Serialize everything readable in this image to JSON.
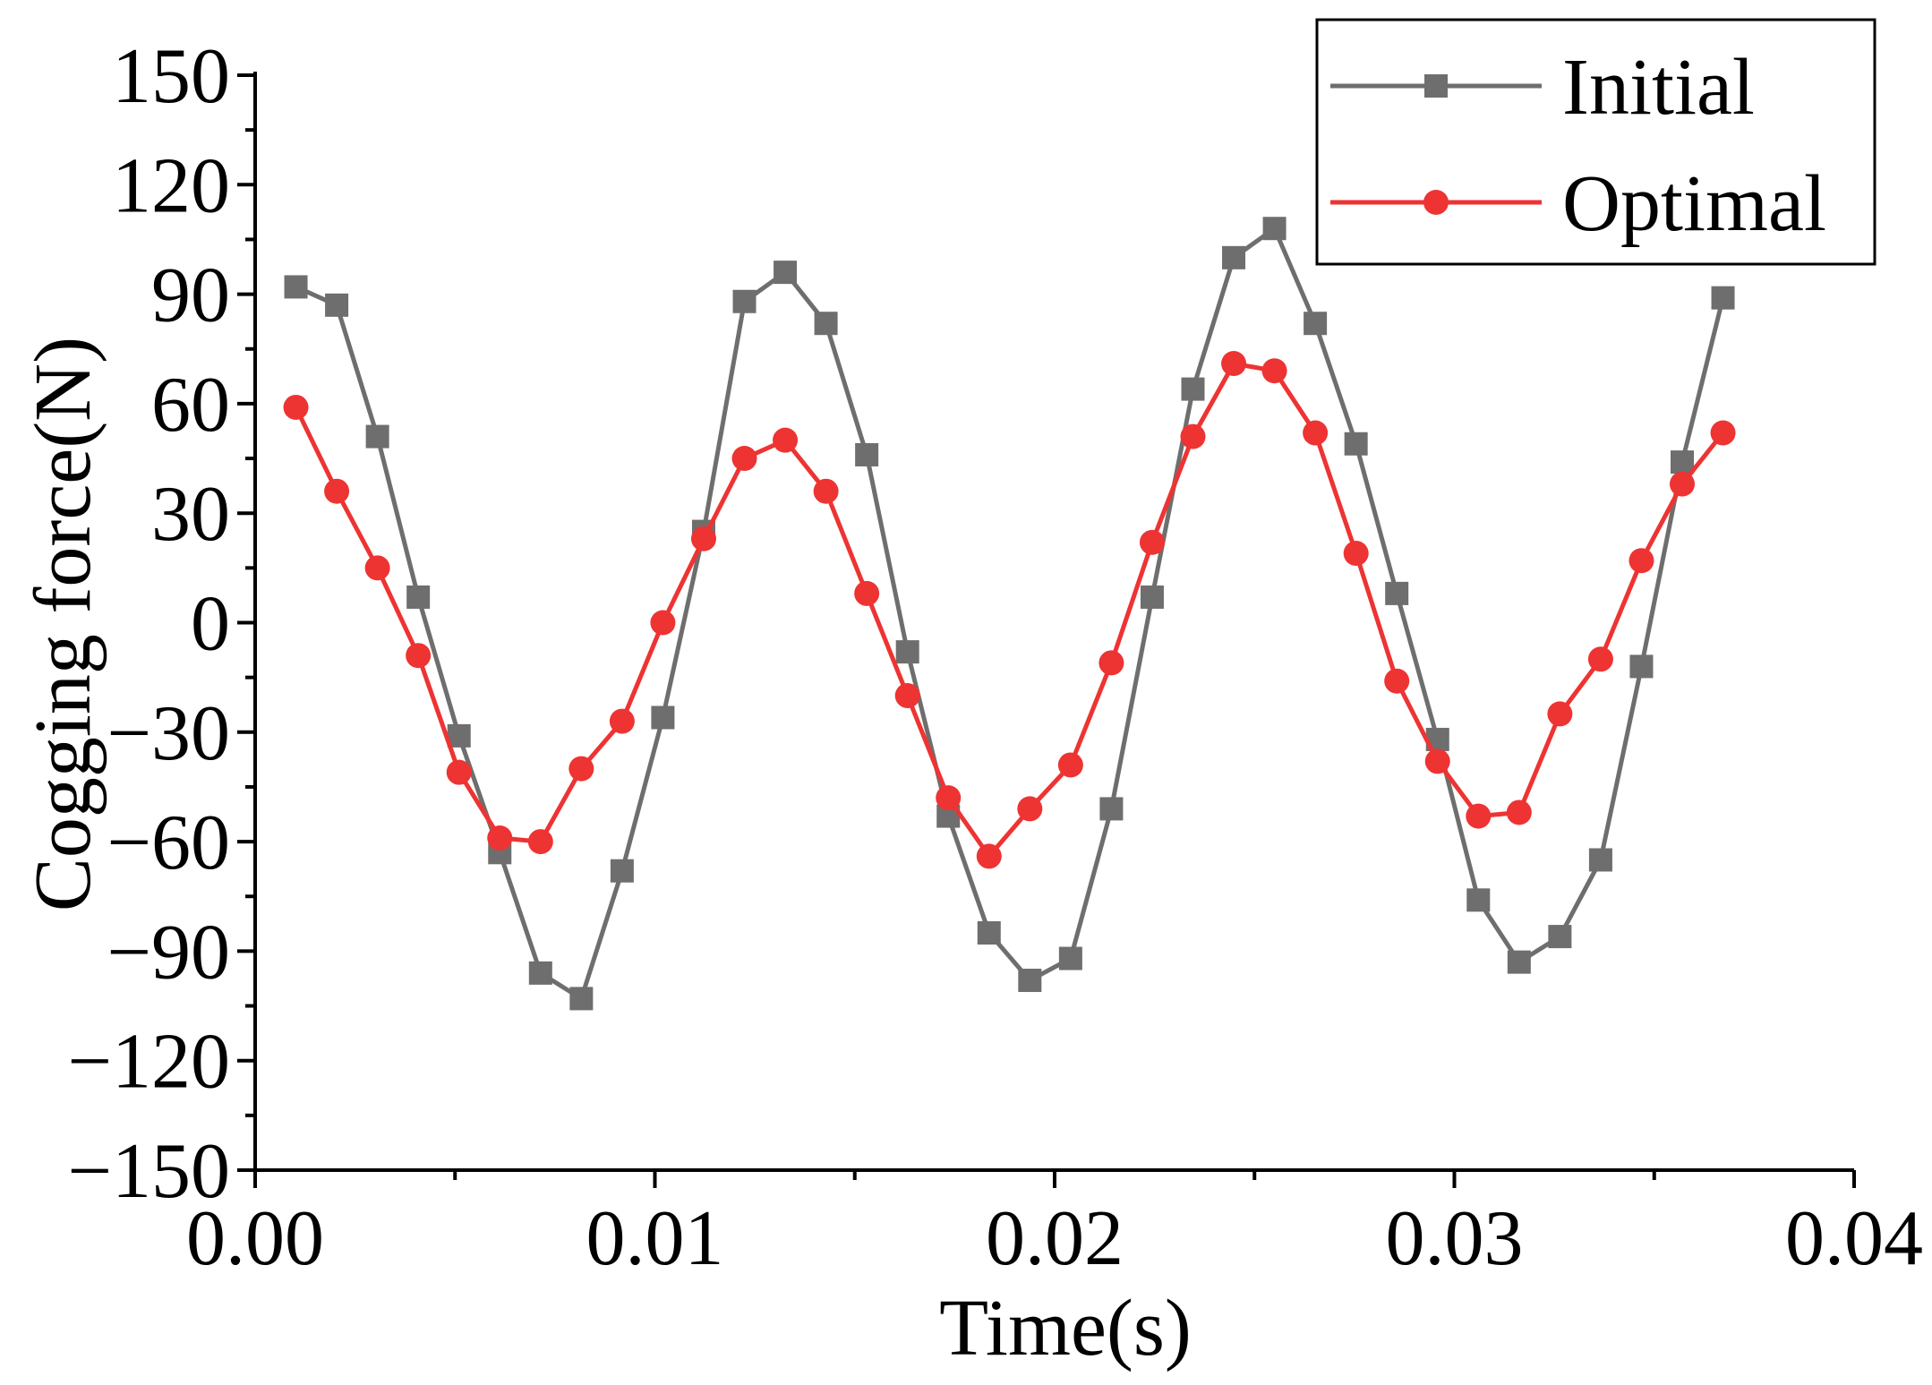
{
  "chart_data": {
    "type": "line",
    "title": "",
    "xlabel": "Time(s)",
    "ylabel": "Cogging force(N)",
    "xlim": [
      0.0,
      0.04
    ],
    "ylim": [
      -150,
      150
    ],
    "xticks": [
      0.0,
      0.01,
      0.02,
      0.03,
      0.04
    ],
    "xtick_labels": [
      "0.00",
      "0.01",
      "0.02",
      "0.03",
      "0.04"
    ],
    "yticks": [
      150,
      120,
      90,
      60,
      30,
      0,
      -30,
      -60,
      -90,
      -120,
      -150
    ],
    "ytick_labels": [
      "150",
      "120",
      "90",
      "60",
      "30",
      "0",
      "−30",
      "−60",
      "−90",
      "−120",
      "−150"
    ],
    "grid": false,
    "legend_position": "top-right",
    "series": [
      {
        "name": "Initial",
        "color": "#6e6e6e",
        "marker": "square",
        "x": [
          0.00102,
          0.00204,
          0.00306,
          0.00408,
          0.0051,
          0.00612,
          0.00714,
          0.00816,
          0.00918,
          0.0102,
          0.01122,
          0.01224,
          0.01326,
          0.01428,
          0.0153,
          0.01632,
          0.01734,
          0.01836,
          0.01938,
          0.0204,
          0.02142,
          0.02244,
          0.02346,
          0.02448,
          0.0255,
          0.02652,
          0.02754,
          0.02856,
          0.02958,
          0.0306,
          0.03162,
          0.03264,
          0.03366,
          0.03468,
          0.0357,
          0.03672
        ],
        "y": [
          92,
          87,
          51,
          7,
          -31,
          -63,
          -96,
          -103,
          -68,
          -26,
          25,
          88,
          96,
          82,
          46,
          -8,
          -53,
          -85,
          -98,
          -92,
          -51,
          7,
          64,
          100,
          108,
          82,
          49,
          8,
          -32,
          -76,
          -93,
          -86,
          -65,
          -12,
          44,
          89
        ]
      },
      {
        "name": "Optimal",
        "color": "#ee3333",
        "marker": "circle",
        "x": [
          0.00102,
          0.00204,
          0.00306,
          0.00408,
          0.0051,
          0.00612,
          0.00714,
          0.00816,
          0.00918,
          0.0102,
          0.01122,
          0.01224,
          0.01326,
          0.01428,
          0.0153,
          0.01632,
          0.01734,
          0.01836,
          0.01938,
          0.0204,
          0.02142,
          0.02244,
          0.02346,
          0.02448,
          0.0255,
          0.02652,
          0.02754,
          0.02856,
          0.02958,
          0.0306,
          0.03162,
          0.03264,
          0.03366,
          0.03468,
          0.0357,
          0.03672
        ],
        "y": [
          59,
          36,
          15,
          -9,
          -41,
          -59,
          -60,
          -40,
          -27,
          0,
          23,
          45,
          50,
          36,
          8,
          -20,
          -48,
          -64,
          -51,
          -39,
          -11,
          22,
          51,
          71,
          69,
          52,
          19,
          -16,
          -38,
          -53,
          -52,
          -25,
          -10,
          17,
          38,
          52
        ]
      }
    ]
  }
}
